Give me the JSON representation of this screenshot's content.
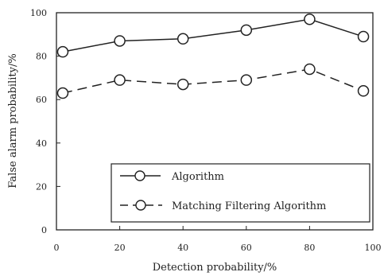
{
  "chart_data": {
    "type": "line",
    "xlabel": "Detection probability/%",
    "ylabel": "False alarm probability/%",
    "xlim": [
      0,
      100
    ],
    "ylim": [
      0,
      100
    ],
    "xticks": [
      0,
      20,
      40,
      60,
      80,
      100
    ],
    "yticks": [
      0,
      20,
      40,
      60,
      80,
      100
    ],
    "grid": false,
    "legend_position": "bottom-right",
    "series": [
      {
        "name": "Algorithm",
        "style": "solid",
        "marker": "circle",
        "color": "#222222",
        "x": [
          2,
          20,
          40,
          60,
          80,
          97
        ],
        "y": [
          82,
          87,
          88,
          92,
          97,
          89
        ]
      },
      {
        "name": "Matching Filtering Algorithm",
        "style": "dashed",
        "marker": "circle",
        "color": "#222222",
        "x": [
          2,
          20,
          40,
          60,
          80,
          97
        ],
        "y": [
          63,
          69,
          67,
          69,
          74,
          64
        ]
      }
    ]
  }
}
